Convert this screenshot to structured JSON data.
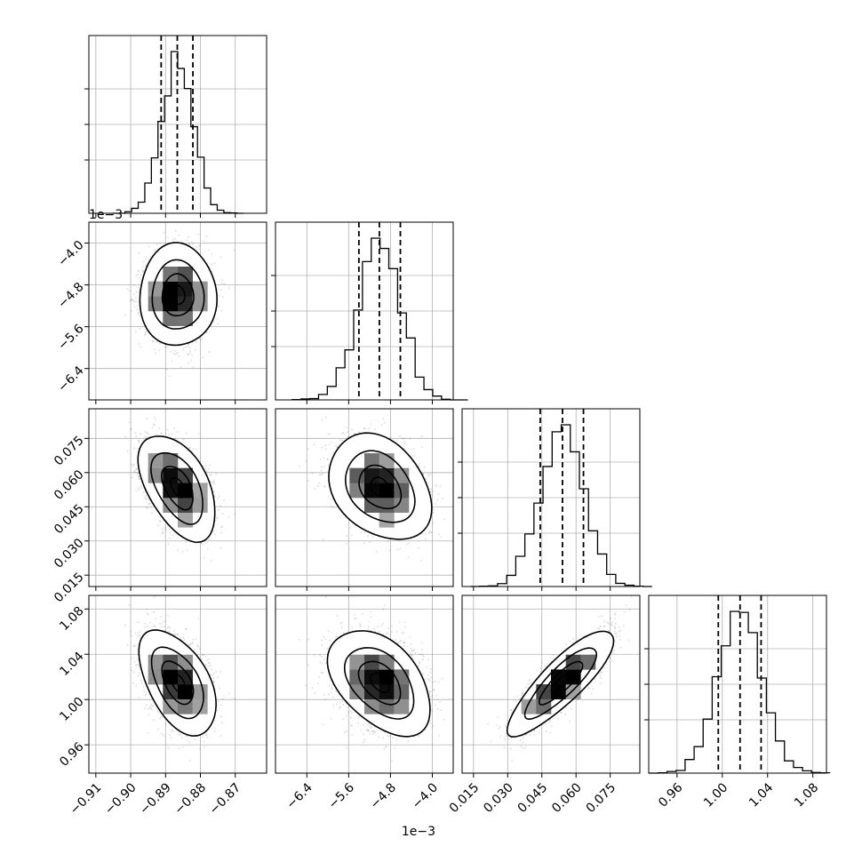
{
  "chart_data": {
    "type": "corner",
    "dimensions": [
      {
        "id": "p0",
        "mean": -0.8865,
        "sd": 0.0045,
        "range": [
          -0.912,
          -0.861
        ],
        "ticks": [
          -0.91,
          -0.9,
          -0.89,
          -0.88,
          -0.87
        ],
        "tick_labels": [
          "−0.91",
          "−0.90",
          "−0.89",
          "−0.88",
          "−0.87"
        ]
      },
      {
        "id": "p1",
        "mean": -5.0,
        "sd": 0.4,
        "range": [
          -7.0,
          -3.6
        ],
        "ticks": [
          -6.4,
          -5.6,
          -4.8,
          -4.0
        ],
        "tick_labels": [
          "−6.4",
          "−5.6",
          "−4.8",
          "−4.0"
        ],
        "offset_label": "1e−3"
      },
      {
        "id": "p2",
        "mean": 0.0535,
        "sd": 0.0095,
        "range": [
          0.01,
          0.088
        ],
        "ticks": [
          0.015,
          0.03,
          0.045,
          0.06,
          0.075
        ],
        "tick_labels": [
          "0.015",
          "0.030",
          "0.045",
          "0.060",
          "0.075"
        ]
      },
      {
        "id": "p3",
        "mean": 1.015,
        "sd": 0.019,
        "range": [
          0.935,
          1.092
        ],
        "ticks": [
          0.96,
          1.0,
          1.04,
          1.08
        ],
        "tick_labels": [
          "0.96",
          "1.00",
          "1.04",
          "1.08"
        ]
      }
    ],
    "correlations": [
      {
        "pair": [
          "p0",
          "p1"
        ],
        "rho": 0.0
      },
      {
        "pair": [
          "p0",
          "p2"
        ],
        "rho": -0.5
      },
      {
        "pair": [
          "p0",
          "p3"
        ],
        "rho": -0.5
      },
      {
        "pair": [
          "p1",
          "p2"
        ],
        "rho": -0.3
      },
      {
        "pair": [
          "p1",
          "p3"
        ],
        "rho": -0.45
      },
      {
        "pair": [
          "p2",
          "p3"
        ],
        "rho": 0.85
      }
    ],
    "quantiles": [
      0.16,
      0.5,
      0.84
    ],
    "histogram_bins": 20,
    "grid": true,
    "xlabel": "",
    "ylabel": ""
  }
}
